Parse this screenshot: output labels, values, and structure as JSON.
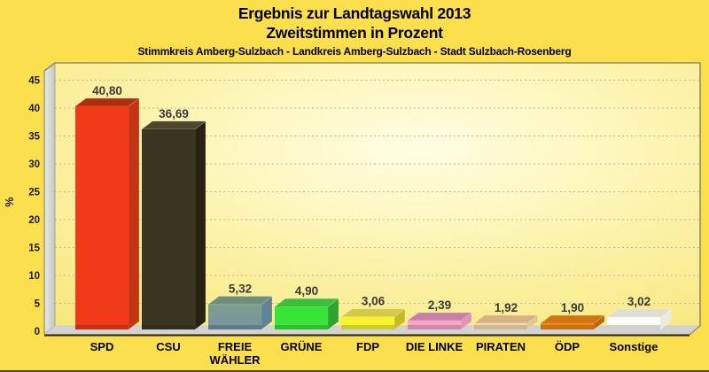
{
  "header": {
    "title_line1": "Ergebnis zur Landtagswahl 2013",
    "title_line2": "Zweitstimmen in Prozent",
    "subtitle": "Stimmkreis Amberg-Sulzbach - Landkreis Amberg-Sulzbach - Stadt Sulzbach-Rosenberg"
  },
  "chart_data": {
    "type": "bar",
    "title": "Ergebnis zur Landtagswahl 2013 — Zweitstimmen in Prozent",
    "subtitle": "Stimmkreis Amberg-Sulzbach - Landkreis Amberg-Sulzbach - Stadt Sulzbach-Rosenberg",
    "ylabel": "%",
    "ylim": [
      0,
      45
    ],
    "ytick_step": 5,
    "yticks": [
      "0",
      "5",
      "10",
      "15",
      "20",
      "25",
      "30",
      "35",
      "40",
      "45"
    ],
    "grid": "dashed-horizontal",
    "legend": "none",
    "style": "3d-bars",
    "categories": [
      "SPD",
      "CSU",
      "FREIE WÄHLER",
      "GRÜNE",
      "FDP",
      "DIE LINKE",
      "PIRATEN",
      "ÖDP",
      "Sonstige"
    ],
    "category_lines": [
      [
        "SPD"
      ],
      [
        "CSU"
      ],
      [
        "FREIE",
        "WÄHLER"
      ],
      [
        "GRÜNE"
      ],
      [
        "FDP"
      ],
      [
        "DIE LINKE"
      ],
      [
        "PIRATEN"
      ],
      [
        "ÖDP"
      ],
      [
        "Sonstige"
      ]
    ],
    "values": [
      40.8,
      36.69,
      5.32,
      4.9,
      3.06,
      2.39,
      1.92,
      1.9,
      3.02
    ],
    "value_labels": [
      "40,80",
      "36,69",
      "5,32",
      "4,90",
      "3,06",
      "2,39",
      "1,92",
      "1,90",
      "3,02"
    ],
    "bar_colors": [
      {
        "front": "#F13A17",
        "top": "#AF2E0F",
        "side": "#C53513"
      },
      {
        "front": "#3B3622",
        "top": "#4C462C",
        "side": "#282310"
      },
      {
        "front": "#80A08C",
        "front2": "#7492A3",
        "top": "#6F8E7B",
        "side": "#5F8494"
      },
      {
        "front": "#39E439",
        "top": "#3DBE3D",
        "side": "#2DA42D"
      },
      {
        "front": "#F8F32E",
        "top": "#D3CA45",
        "side": "#C6BD25"
      },
      {
        "front": "#F8A6C9",
        "top": "#CC7FA4",
        "side": "#E092B8"
      },
      {
        "front": "#F6DAB1",
        "top": "#D7B383",
        "side": "#E6C494"
      },
      {
        "front": "#EE8A16",
        "top": "#D1750F",
        "side": "#BE660C"
      },
      {
        "front": "#FCFCF6",
        "top": "#DEDED2",
        "side": "#EBEBE1"
      }
    ],
    "frame_colors": {
      "page_bg": "#FCDF4D",
      "plot_bg_center": "#FFFEE4",
      "plot_bg_mid": "#FCF3AC",
      "plot_bg_edge": "#F8E77E",
      "gridline": "#BCBCA6",
      "wall_light": "#E9E9E9",
      "wall_dark": "#C6C6C6",
      "floor": "#D3D3D3",
      "border_olive": "#8F8F63",
      "axis_black": "#222222",
      "tick_text": "#1A1A1A",
      "value_text": "#3A3A3A",
      "label_text": "#000000"
    }
  }
}
